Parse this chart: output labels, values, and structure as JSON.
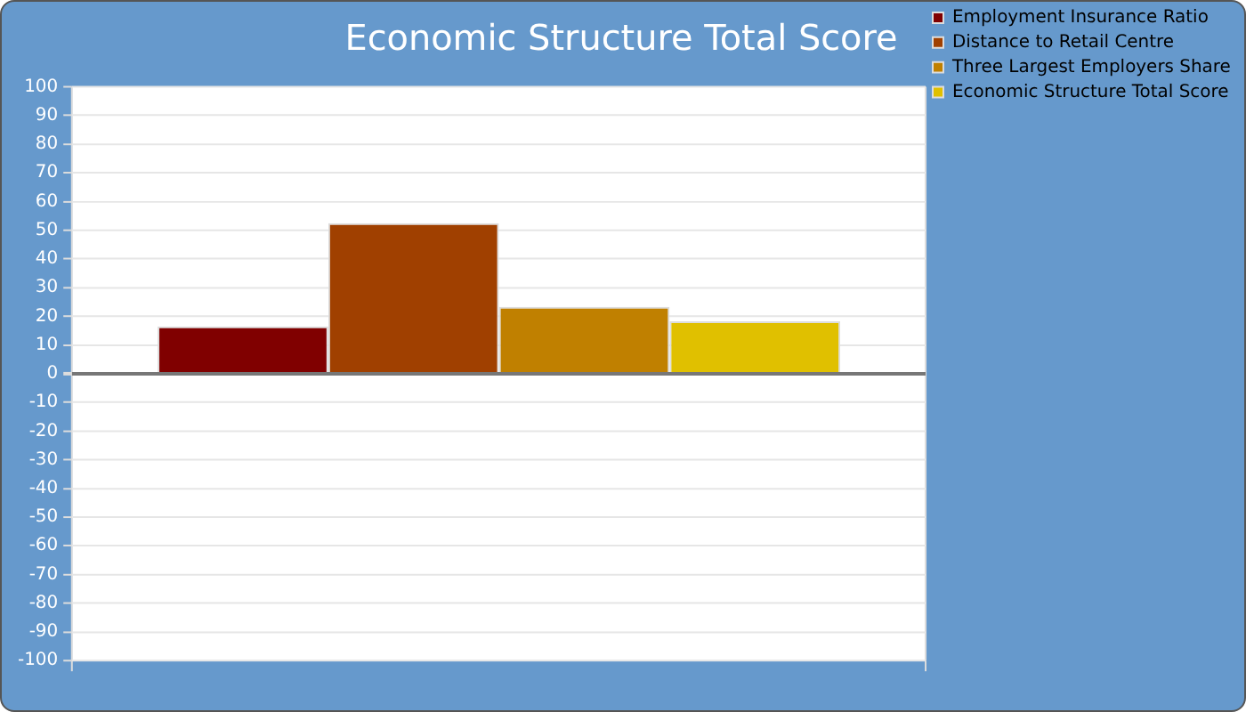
{
  "chart_data": {
    "type": "bar",
    "title": "Economic Structure Total Score",
    "categories": [
      null
    ],
    "series": [
      {
        "name": "Employment Insurance Ratio",
        "color": "#800000",
        "values": [
          16.5
        ]
      },
      {
        "name": "Distance to Retail Centre",
        "color": "#a04000",
        "values": [
          52.5
        ]
      },
      {
        "name": "Three Largest Employers Share",
        "color": "#c08000",
        "values": [
          23.3
        ]
      },
      {
        "name": "Economic Structure Total Score",
        "color": "#e0c000",
        "values": [
          18.3
        ]
      }
    ],
    "ylim": [
      -100,
      100
    ],
    "yticks": [
      -100,
      -90,
      -80,
      -70,
      -60,
      -50,
      -40,
      -30,
      -20,
      -10,
      0,
      10,
      20,
      30,
      40,
      50,
      60,
      70,
      80,
      90,
      100
    ],
    "grid": true,
    "legend": "top right"
  }
}
